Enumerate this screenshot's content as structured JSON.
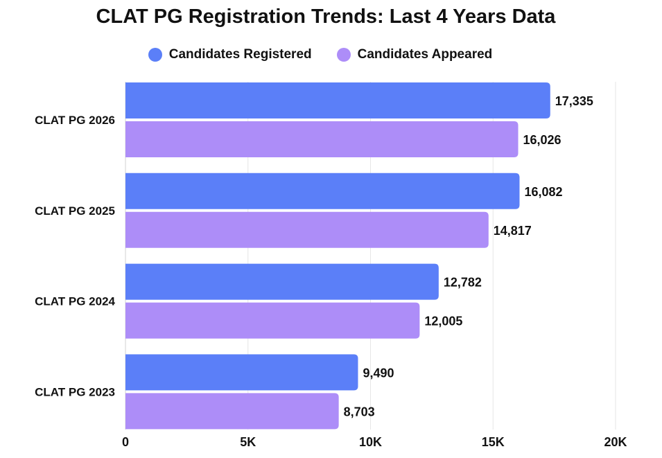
{
  "chart_data": {
    "type": "bar",
    "orientation": "horizontal",
    "title": "CLAT PG Registration Trends: Last 4 Years Data",
    "categories": [
      "CLAT PG 2026",
      "CLAT PG 2025",
      "CLAT PG 2024",
      "CLAT PG 2023"
    ],
    "series": [
      {
        "name": "Candidates Registered",
        "color": "#5b7ff8",
        "values": [
          17335,
          16082,
          12782,
          9490
        ],
        "labels": [
          "17,335",
          "16,082",
          "12,782",
          "9,490"
        ]
      },
      {
        "name": "Candidates Appeared",
        "color": "#ad8df8",
        "values": [
          16026,
          14817,
          12005,
          8703
        ],
        "labels": [
          "16,026",
          "14,817",
          "12,005",
          "8,703"
        ]
      }
    ],
    "xlim": [
      0,
      20000
    ],
    "xticks": [
      0,
      5000,
      10000,
      15000,
      20000
    ],
    "xtick_labels": [
      "0",
      "5K",
      "10K",
      "15K",
      "20K"
    ],
    "grid": true,
    "legend_position": "top-center"
  }
}
